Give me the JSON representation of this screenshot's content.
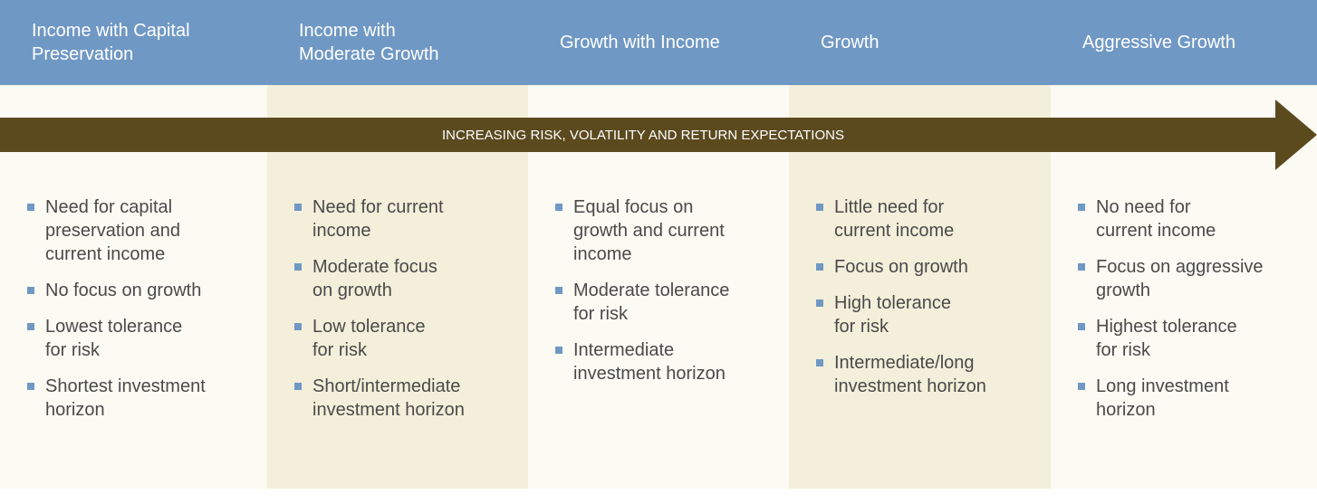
{
  "columns": [
    {
      "title": [
        "Income with Capital",
        "Preservation"
      ],
      "bullets": [
        [
          "Need for capital",
          "preservation and",
          "current income"
        ],
        [
          "No focus on growth"
        ],
        [
          "Lowest tolerance",
          "for risk"
        ],
        [
          "Shortest investment",
          "horizon"
        ]
      ]
    },
    {
      "title": [
        "Income with",
        "Moderate Growth"
      ],
      "bullets": [
        [
          "Need for current",
          "income"
        ],
        [
          "Moderate focus",
          "on growth"
        ],
        [
          "Low tolerance",
          "for risk"
        ],
        [
          "Short/intermediate",
          "investment horizon"
        ]
      ]
    },
    {
      "title": [
        "Growth with Income"
      ],
      "bullets": [
        [
          "Equal focus on",
          "growth and current",
          "income"
        ],
        [
          "Moderate tolerance",
          "for risk"
        ],
        [
          "Intermediate",
          "investment horizon"
        ]
      ]
    },
    {
      "title": [
        "Growth"
      ],
      "bullets": [
        [
          "Little need for",
          "current income"
        ],
        [
          "Focus on growth"
        ],
        [
          "High tolerance",
          "for risk"
        ],
        [
          "Intermediate/long",
          "investment horizon"
        ]
      ]
    },
    {
      "title": [
        "Aggressive Growth"
      ],
      "bullets": [
        [
          "No need for",
          "current income"
        ],
        [
          "Focus on aggressive",
          "growth"
        ],
        [
          "Highest tolerance",
          "for risk"
        ],
        [
          "Long investment",
          "horizon"
        ]
      ]
    }
  ],
  "arrow_label": "INCREASING RISK, VOLATILITY AND RETURN EXPECTATIONS"
}
